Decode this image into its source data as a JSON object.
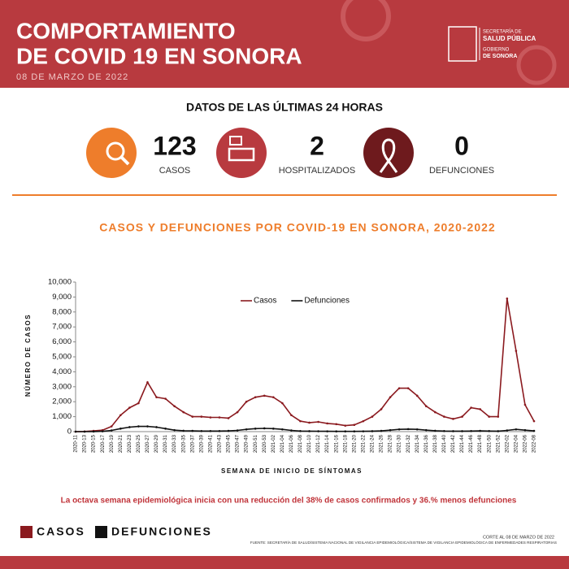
{
  "header": {
    "title_line1": "COMPORTAMIENTO",
    "title_line2": "DE COVID 19 EN SONORA",
    "date": "08 DE MARZO DE 2022",
    "logo_line1": "SECRETARÍA DE",
    "logo_line2": "SALUD PÚBLICA",
    "logo_line3": "GOBIERNO",
    "logo_line4": "DE SONORA"
  },
  "summary": {
    "title": "DATOS DE LAS ÚLTIMAS 24 HORAS",
    "stats": [
      {
        "value": "123",
        "label": "CASOS"
      },
      {
        "value": "2",
        "label": "HOSPITALIZADOS"
      },
      {
        "value": "0",
        "label": "DEFUNCIONES"
      }
    ]
  },
  "chart_data": {
    "type": "line",
    "title": "CASOS Y DEFUNCIONES POR COVID-19 EN SONORA, 2020-2022",
    "x_label": "SEMANA DE INICIO DE SÍNTOMAS",
    "y_label": "NÚMERO DE CASOS",
    "categories": [
      "2020-11",
      "2020-13",
      "2020-15",
      "2020-17",
      "2020-19",
      "2020-21",
      "2020-23",
      "2020-25",
      "2020-27",
      "2020-29",
      "2020-31",
      "2020-33",
      "2020-35",
      "2020-37",
      "2020-39",
      "2020-41",
      "2020-43",
      "2020-45",
      "2020-47",
      "2020-49",
      "2020-51",
      "2020-53",
      "2021-02",
      "2021-04",
      "2021-06",
      "2021-08",
      "2021-10",
      "2021-12",
      "2021-14",
      "2021-16",
      "2021-18",
      "2021-20",
      "2021-22",
      "2021-24",
      "2021-26",
      "2021-28",
      "2021-30",
      "2021-32",
      "2021-34",
      "2021-36",
      "2021-38",
      "2021-40",
      "2021-42",
      "2021-44",
      "2021-46",
      "2021-48",
      "2021-50",
      "2021-52",
      "2022-02",
      "2022-04",
      "2022-06",
      "2022-08"
    ],
    "series": [
      {
        "name": "Casos",
        "color": "#8b1a1f",
        "values": [
          0,
          10,
          50,
          100,
          350,
          1100,
          1600,
          1900,
          3300,
          2300,
          2200,
          1700,
          1300,
          1000,
          1000,
          950,
          950,
          900,
          1300,
          2000,
          2300,
          2400,
          2300,
          1900,
          1100,
          700,
          600,
          650,
          550,
          500,
          400,
          450,
          700,
          1000,
          1500,
          2300,
          2900,
          2900,
          2400,
          1700,
          1300,
          1000,
          850,
          1000,
          1600,
          1500,
          1000,
          1000,
          8900,
          5400,
          1800,
          700
        ]
      },
      {
        "name": "Defunciones",
        "color": "#111111",
        "values": [
          0,
          0,
          5,
          20,
          80,
          200,
          300,
          350,
          350,
          300,
          200,
          100,
          60,
          50,
          40,
          40,
          40,
          50,
          80,
          150,
          200,
          220,
          200,
          150,
          80,
          40,
          30,
          25,
          20,
          15,
          15,
          15,
          20,
          30,
          50,
          100,
          150,
          170,
          150,
          100,
          60,
          40,
          30,
          30,
          40,
          50,
          40,
          30,
          80,
          150,
          100,
          50
        ]
      }
    ],
    "ylim": [
      0,
      10000
    ],
    "yticks": [
      0,
      {
        "value": 1000,
        "label": "1,000"
      },
      {
        "value": 2000,
        "label": "2,000"
      },
      {
        "value": 3000,
        "label": "3,000"
      },
      {
        "value": 4000,
        "label": "4,000"
      },
      {
        "value": 5000,
        "label": "5,000"
      },
      {
        "value": 6000,
        "label": "6,000"
      },
      {
        "value": 7000,
        "label": "7,000"
      },
      {
        "value": 8000,
        "label": "8,000"
      },
      {
        "value": 9000,
        "label": "9,000"
      },
      {
        "value": 10000,
        "label": "10,000"
      }
    ],
    "grid": false,
    "legend": "top"
  },
  "note": "La octava semana epidemiológica inicia con una reducción del 38% de casos confirmados y 36.% menos defunciones",
  "bottom_legend": [
    "CASOS",
    "DEFUNCIONES"
  ],
  "footer": {
    "cutoff": "CORTE AL 08 DE MARZO DE 2022",
    "source": "FUENTE: SECRETARÍA DE SALUD/SISTEMA NACIONAL DE VIGILANCIA EPIDEMIOLÓGICA/SISTEMA DE VIGILANCIA EPIDEMIOLÓGICA DE ENFERMEDADES RESPIRATORIAS"
  }
}
